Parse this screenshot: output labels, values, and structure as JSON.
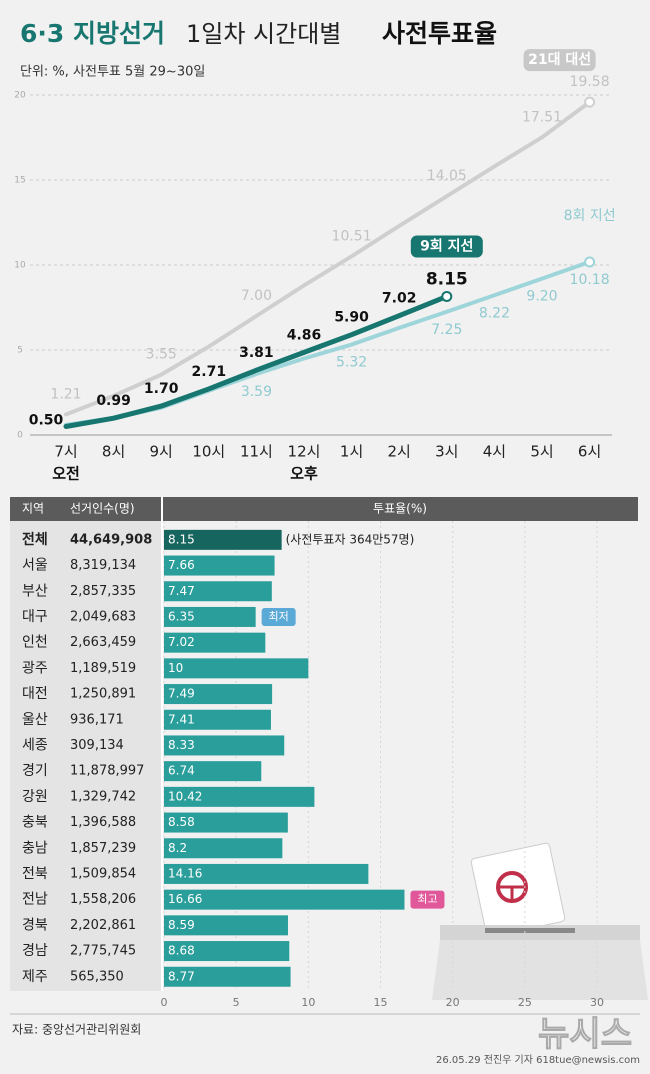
{
  "chart_data": [
    {
      "type": "line",
      "title_parts": [
        "6·3 지방선거",
        "1일차 시간대별",
        "사전투표율"
      ],
      "subtitle": "단위: %, 사전투표 5월 29~30일",
      "categories": [
        "7시",
        "8시",
        "9시",
        "10시",
        "11시",
        "12시",
        "1시",
        "2시",
        "3시",
        "4시",
        "5시",
        "6시"
      ],
      "x_group_labels": [
        "오전",
        null,
        null,
        null,
        null,
        "오후",
        null,
        null,
        null,
        null,
        null,
        null
      ],
      "ylim": [
        0,
        20
      ],
      "yticks": [
        0,
        5,
        10,
        15,
        20
      ],
      "grid": true,
      "series": [
        {
          "name": "21대 대선",
          "color": "#cfcfcf",
          "values": [
            1.21,
            2.3,
            3.55,
            5.2,
            7.0,
            8.8,
            10.51,
            12.3,
            14.05,
            15.8,
            17.51,
            19.58
          ],
          "value_labels": [
            "1.21",
            null,
            "3.55",
            null,
            "7.00",
            null,
            "10.51",
            null,
            "14.05",
            null,
            "17.51",
            "19.58"
          ]
        },
        {
          "name": "8회 지선",
          "color": "#9ed5da",
          "values": [
            0.6,
            1.0,
            1.6,
            2.6,
            3.59,
            4.5,
            5.32,
            6.3,
            7.25,
            8.22,
            9.2,
            10.18
          ],
          "value_labels": [
            null,
            null,
            null,
            null,
            "3.59",
            null,
            "5.32",
            null,
            "7.25",
            "8.22",
            "9.20",
            "10.18"
          ]
        },
        {
          "name": "9회 지선",
          "color": "#17766f",
          "values": [
            0.5,
            0.99,
            1.7,
            2.71,
            3.81,
            4.86,
            5.9,
            7.02,
            8.15,
            null,
            null,
            null
          ],
          "value_labels": [
            "0.50",
            "0.99",
            "1.70",
            "2.71",
            "3.81",
            "4.86",
            "5.90",
            "7.02",
            "8.15",
            null,
            null,
            null
          ]
        }
      ]
    },
    {
      "type": "hbar",
      "column_headers": [
        "지역",
        "선거인수(명)",
        "투표율(%)"
      ],
      "categories": [
        "전체",
        "서울",
        "부산",
        "대구",
        "인천",
        "광주",
        "대전",
        "울산",
        "세종",
        "경기",
        "강원",
        "충북",
        "충남",
        "전북",
        "전남",
        "경북",
        "경남",
        "제주"
      ],
      "electors": [
        "44,649,908",
        "8,319,134",
        "2,857,335",
        "2,049,683",
        "2,663,459",
        "1,189,519",
        "1,250,891",
        "936,171",
        "309,134",
        "11,878,997",
        "1,329,742",
        "1,396,588",
        "1,857,239",
        "1,509,854",
        "1,558,206",
        "2,202,861",
        "2,775,745",
        "565,350"
      ],
      "values": [
        8.15,
        7.66,
        7.47,
        6.35,
        7.02,
        10,
        7.49,
        7.41,
        8.33,
        6.74,
        10.42,
        8.58,
        8.2,
        14.16,
        16.66,
        8.59,
        8.68,
        8.77
      ],
      "colors": [
        "#17655f",
        "#2a9e9b",
        "#2a9e9b",
        "#2a9e9b",
        "#2a9e9b",
        "#2a9e9b",
        "#2a9e9b",
        "#2a9e9b",
        "#2a9e9b",
        "#2a9e9b",
        "#2a9e9b",
        "#2a9e9b",
        "#2a9e9b",
        "#2a9e9b",
        "#2a9e9b",
        "#2a9e9b",
        "#2a9e9b",
        "#2a9e9b"
      ],
      "value_notes": [
        "(사전투표자 364만57명)",
        null,
        null,
        "최저",
        null,
        null,
        null,
        null,
        null,
        null,
        null,
        null,
        null,
        null,
        "최고",
        null,
        null,
        null
      ],
      "xlim": [
        0,
        30
      ],
      "xticks": [
        0,
        5,
        10,
        15,
        20,
        25,
        30
      ]
    }
  ],
  "source": "자료: 중앙선거관리위원회",
  "credit": "26.05.29 전진우 기자 618tue@newsis.com",
  "watermark": "뉴시스"
}
